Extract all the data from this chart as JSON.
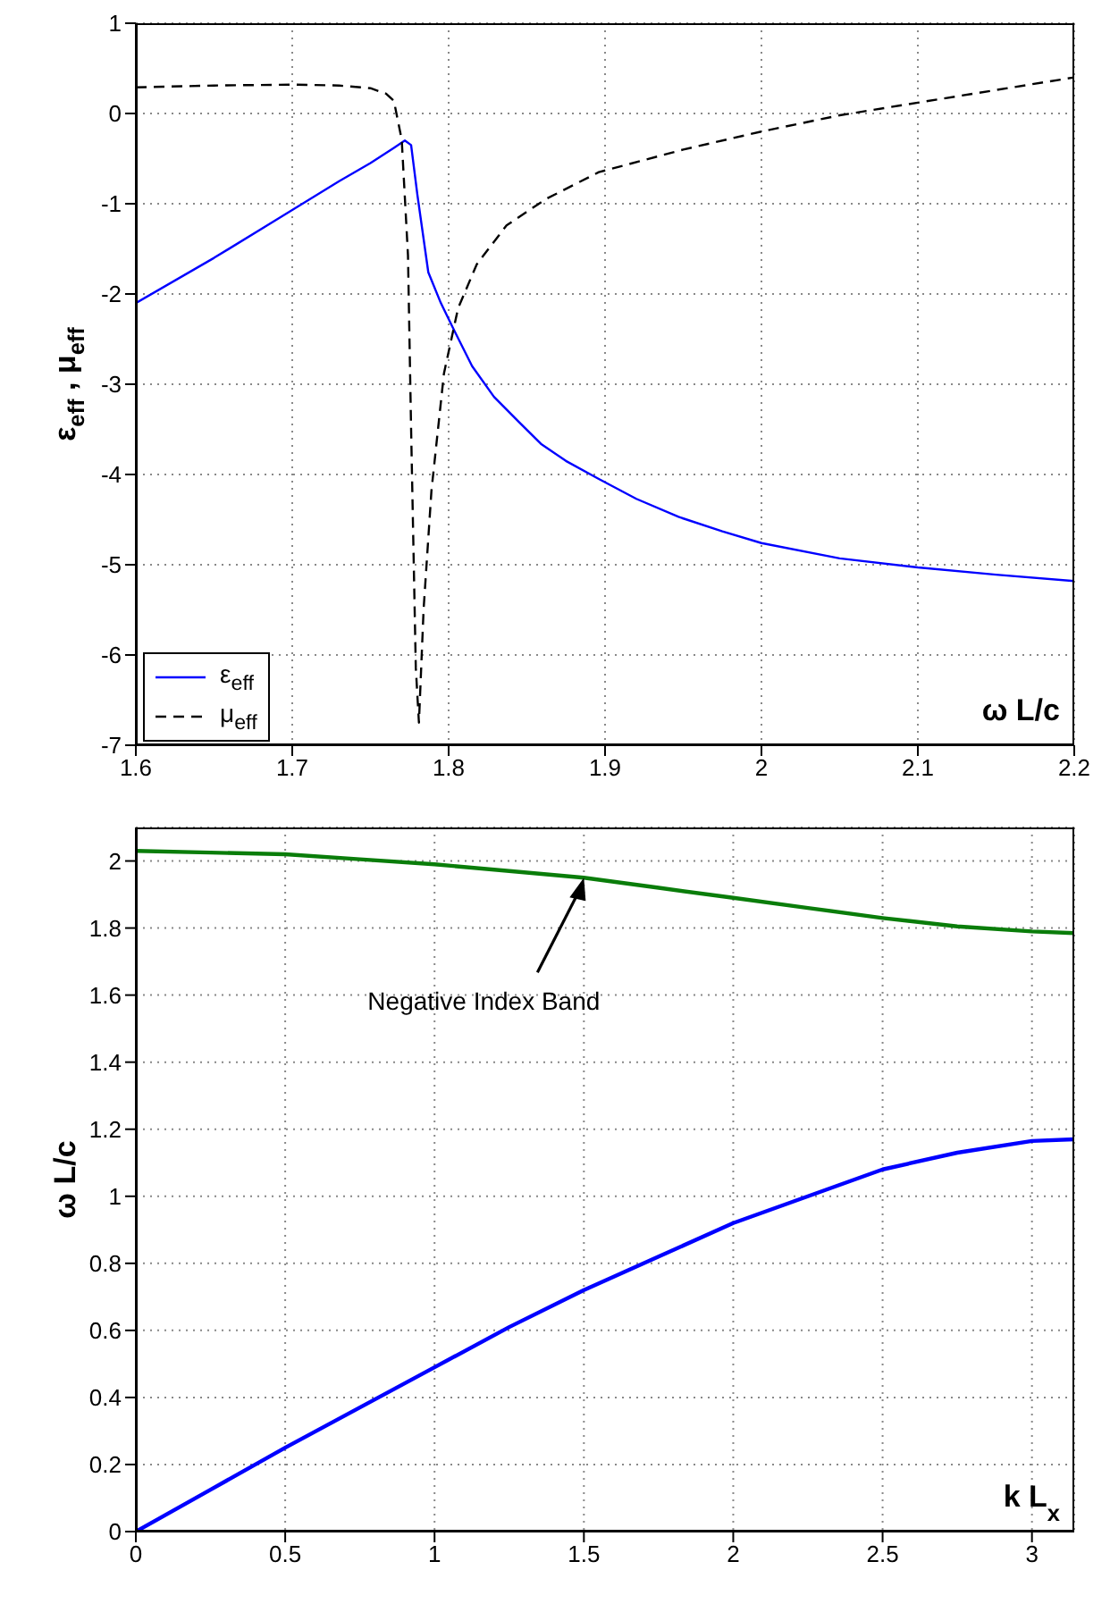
{
  "chart_data": [
    {
      "type": "line",
      "xlabel": "ω L/c",
      "ylabel": "ε$_{eff}$, μ$_{eff}$",
      "xlim": [
        1.6,
        2.2
      ],
      "xticks": [
        1.6,
        1.7,
        1.8,
        1.9,
        2,
        2.1,
        2.2
      ],
      "ylim": [
        -7,
        1
      ],
      "yticks": [
        -7,
        -6,
        -5,
        -4,
        -3,
        -2,
        -1,
        0,
        1
      ],
      "grid": true,
      "legend": "bottom left",
      "series": [
        {
          "name": "ε$_{eff}$",
          "color": "#0000ff",
          "line_style": "solid",
          "x": [
            1.6,
            1.65,
            1.7,
            1.73,
            1.75,
            1.765,
            1.772,
            1.776,
            1.78,
            1.787,
            1.795,
            1.802,
            1.815,
            1.829,
            1.845,
            1.859,
            1.875,
            1.896,
            1.92,
            1.947,
            1.975,
            2.0,
            2.05,
            2.1,
            2.15,
            2.2
          ],
          "values": [
            -2.1,
            -1.6,
            -1.07,
            -0.75,
            -0.55,
            -0.38,
            -0.3,
            -0.35,
            -0.9,
            -1.76,
            -2.1,
            -2.35,
            -2.8,
            -3.14,
            -3.42,
            -3.66,
            -3.85,
            -4.05,
            -4.27,
            -4.47,
            -4.63,
            -4.76,
            -4.93,
            -5.03,
            -5.11,
            -5.18
          ]
        },
        {
          "name": "μ$_{eff}$",
          "color": "#000000",
          "line_style": "dashed",
          "x": [
            1.6,
            1.65,
            1.7,
            1.73,
            1.75,
            1.76,
            1.765,
            1.77,
            1.774,
            1.776,
            1.779,
            1.781,
            1.784,
            1.789,
            1.797,
            1.806,
            1.818,
            1.837,
            1.862,
            1.896,
            1.95,
            2.0,
            2.05,
            2.1,
            2.15,
            2.2
          ],
          "values": [
            0.29,
            0.31,
            0.32,
            0.31,
            0.28,
            0.22,
            0.14,
            -0.29,
            -1.57,
            -3.5,
            -6.14,
            -6.75,
            -5.49,
            -4.18,
            -2.88,
            -2.16,
            -1.67,
            -1.24,
            -0.95,
            -0.65,
            -0.4,
            -0.2,
            -0.02,
            0.12,
            0.26,
            0.4
          ]
        }
      ]
    },
    {
      "type": "line",
      "xlabel": "k L$_{x}$",
      "ylabel": "ω L/c",
      "xlim": [
        0,
        3.1416
      ],
      "xticks": [
        0,
        0.5,
        1,
        1.5,
        2,
        2.5,
        3
      ],
      "ylim": [
        0,
        2.1
      ],
      "yticks": [
        0,
        0.2,
        0.4,
        0.6,
        0.8,
        1,
        1.2,
        1.4,
        1.6,
        1.8,
        2
      ],
      "grid": true,
      "annotations": [
        {
          "text": "Negative Index Band",
          "x": 1.5,
          "y": 1.95
        }
      ],
      "x": [
        0,
        0.25,
        0.5,
        0.75,
        1,
        1.25,
        1.5,
        1.75,
        2,
        2.25,
        2.5,
        2.75,
        3,
        3.1416
      ],
      "series": [
        {
          "color": "#0000ff",
          "values": [
            0,
            0.125,
            0.25,
            0.37,
            0.49,
            0.61,
            0.72,
            0.82,
            0.92,
            1.0,
            1.08,
            1.13,
            1.165,
            1.17
          ]
        },
        {
          "color": "#0a7d0a",
          "values": [
            2.03,
            2.025,
            2.02,
            2.005,
            1.99,
            1.97,
            1.95,
            1.92,
            1.89,
            1.86,
            1.83,
            1.805,
            1.79,
            1.785
          ]
        }
      ]
    }
  ]
}
